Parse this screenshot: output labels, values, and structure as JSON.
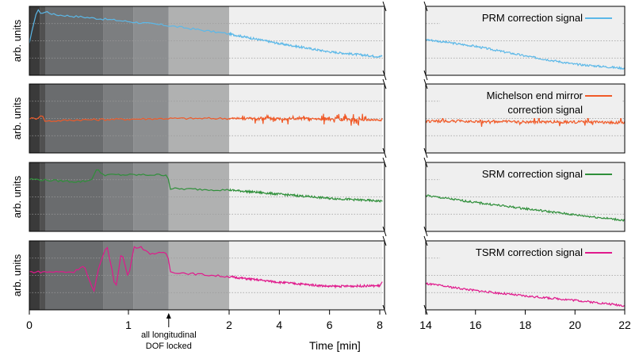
{
  "chart_data": {
    "type": "line",
    "xlabel": "Time [min]",
    "ylabel": "arb. units",
    "x_axis_left": {
      "ticks": [
        0,
        1,
        2,
        4,
        6,
        8
      ],
      "tick_labels": [
        "0",
        "1",
        "2",
        "4",
        "6",
        "8"
      ],
      "segments": [
        {
          "range": [
            0,
            2
          ],
          "scale": "linear"
        },
        {
          "range": [
            2,
            8.1
          ],
          "scale": "linear, compressed"
        }
      ]
    },
    "x_axis_right": {
      "range": [
        14,
        22
      ],
      "ticks": [
        14,
        16,
        18,
        20,
        22
      ],
      "tick_labels": [
        "14",
        "16",
        "18",
        "20",
        "22"
      ]
    },
    "axis_break": "between 8 and 14",
    "background_shading": [
      {
        "x": [
          0,
          0.11
        ],
        "color": "#3a3a3a"
      },
      {
        "x": [
          0.11,
          0.16
        ],
        "color": "#505050"
      },
      {
        "x": [
          0.16,
          0.75
        ],
        "color": "#6a6c6e"
      },
      {
        "x": [
          0.75,
          1.05
        ],
        "color": "#7c7e80"
      },
      {
        "x": [
          1.05,
          1.4
        ],
        "color": "#8c8e90"
      },
      {
        "x": [
          1.4,
          2.0
        ],
        "color": "#b0b1b1"
      },
      {
        "x": [
          2.0,
          22
        ],
        "color": "#efefef"
      }
    ],
    "grid": "horizontal dotted",
    "legend_placement": "top-right of each right panel",
    "annotation": {
      "x": 1.4,
      "text_lines": [
        "all longitudinal",
        "DOF locked"
      ]
    },
    "series": [
      {
        "name": "PRM correction signal",
        "color": "#5bb8e8",
        "left_points": [
          [
            0,
            0.45
          ],
          [
            0.05,
            0.8
          ],
          [
            0.08,
            0.95
          ],
          [
            0.12,
            0.9
          ],
          [
            0.18,
            0.92
          ],
          [
            0.25,
            0.88
          ],
          [
            0.5,
            0.85
          ],
          [
            1.0,
            0.78
          ],
          [
            1.4,
            0.72
          ],
          [
            2.0,
            0.6
          ],
          [
            4,
            0.46
          ],
          [
            6,
            0.34
          ],
          [
            8,
            0.27
          ],
          [
            8.1,
            0.28
          ]
        ],
        "right_points": [
          [
            14,
            0.52
          ],
          [
            16,
            0.42
          ],
          [
            18,
            0.28
          ],
          [
            20,
            0.16
          ],
          [
            22,
            0.1
          ]
        ]
      },
      {
        "name": "Michelson end mirror correction signal",
        "legend_lines": [
          "Michelson end mirror",
          "correction signal"
        ],
        "color": "#f05a28",
        "left_points": [
          [
            0,
            0.5
          ],
          [
            0.08,
            0.5
          ],
          [
            0.12,
            0.56
          ],
          [
            0.16,
            0.46
          ],
          [
            0.5,
            0.48
          ],
          [
            1.0,
            0.49
          ],
          [
            1.4,
            0.5
          ],
          [
            2.0,
            0.5
          ],
          [
            4,
            0.5
          ],
          [
            6,
            0.49
          ],
          [
            8,
            0.48
          ],
          [
            8.1,
            0.48
          ]
        ],
        "right_points": [
          [
            14,
            0.46
          ],
          [
            16,
            0.46
          ],
          [
            18,
            0.45
          ],
          [
            20,
            0.45
          ],
          [
            22,
            0.44
          ]
        ]
      },
      {
        "name": "SRM correction signal",
        "color": "#2f8f3a",
        "left_points": [
          [
            0,
            0.76
          ],
          [
            0.2,
            0.74
          ],
          [
            0.5,
            0.72
          ],
          [
            0.62,
            0.74
          ],
          [
            0.68,
            0.9
          ],
          [
            0.75,
            0.82
          ],
          [
            1.0,
            0.82
          ],
          [
            1.39,
            0.82
          ],
          [
            1.41,
            0.62
          ],
          [
            2.0,
            0.6
          ],
          [
            4,
            0.54
          ],
          [
            6,
            0.48
          ],
          [
            8,
            0.44
          ],
          [
            8.1,
            0.44
          ]
        ],
        "right_points": [
          [
            14,
            0.52
          ],
          [
            16,
            0.42
          ],
          [
            18,
            0.33
          ],
          [
            20,
            0.24
          ],
          [
            22,
            0.16
          ]
        ]
      },
      {
        "name": "TSRM correction signal",
        "color": "#e0198c",
        "left_points": [
          [
            0,
            0.55
          ],
          [
            0.45,
            0.55
          ],
          [
            0.55,
            0.65
          ],
          [
            0.6,
            0.45
          ],
          [
            0.65,
            0.25
          ],
          [
            0.7,
            0.6
          ],
          [
            0.78,
            0.95
          ],
          [
            0.83,
            0.6
          ],
          [
            0.87,
            0.3
          ],
          [
            0.93,
            0.85
          ],
          [
            1.0,
            0.45
          ],
          [
            1.05,
            0.9
          ],
          [
            1.12,
            0.92
          ],
          [
            1.2,
            0.82
          ],
          [
            1.39,
            0.82
          ],
          [
            1.41,
            0.55
          ],
          [
            2.0,
            0.48
          ],
          [
            4,
            0.4
          ],
          [
            6,
            0.34
          ],
          [
            8,
            0.35
          ],
          [
            8.1,
            0.4
          ]
        ],
        "right_points": [
          [
            14,
            0.38
          ],
          [
            16,
            0.28
          ],
          [
            18,
            0.2
          ],
          [
            20,
            0.14
          ],
          [
            22,
            0.06
          ]
        ]
      }
    ]
  }
}
